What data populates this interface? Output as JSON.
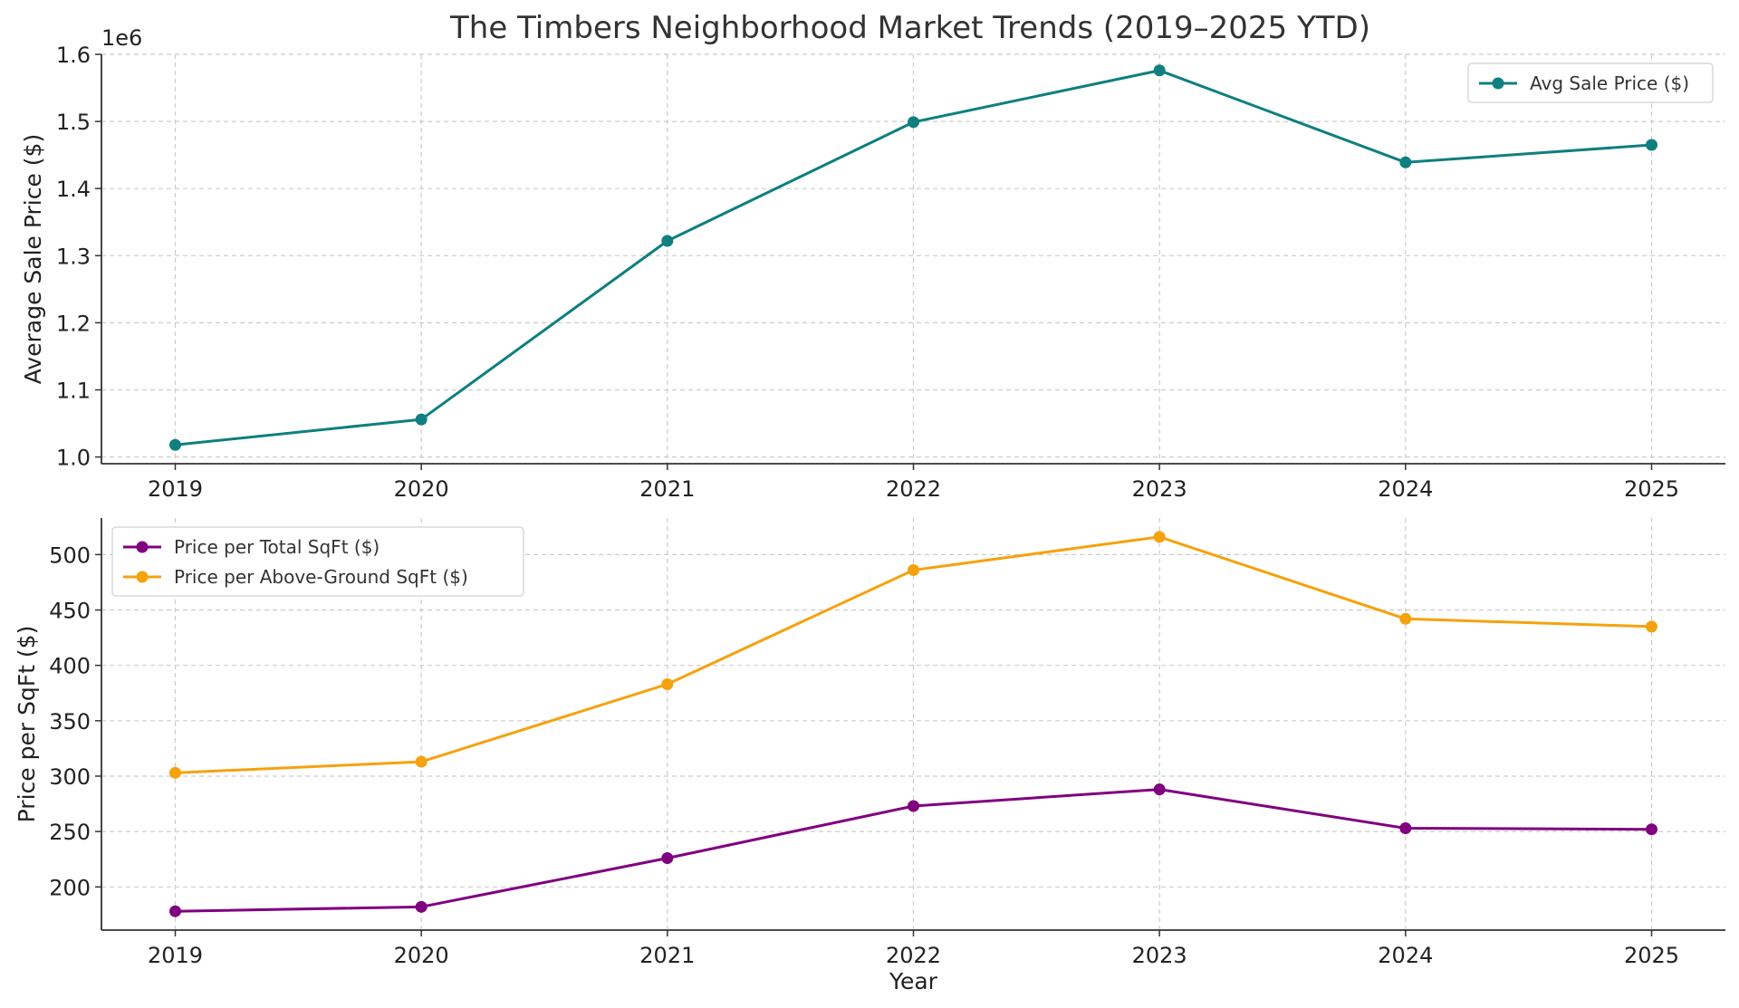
{
  "title": "The Timbers Neighborhood Market Trends (2019–2025 YTD)",
  "chart_data": [
    {
      "type": "line",
      "categories": [
        "2019",
        "2020",
        "2021",
        "2022",
        "2023",
        "2024",
        "2025"
      ],
      "x": [
        2019,
        2020,
        2021,
        2022,
        2023,
        2024,
        2025
      ],
      "ylabel": "Average Sale Price ($)",
      "xlabel": "",
      "offset_text": "1e6",
      "ylim": [
        0.99,
        1.6
      ],
      "yticks": [
        1.0,
        1.1,
        1.2,
        1.3,
        1.4,
        1.5,
        1.6
      ],
      "ytick_labels": [
        "1.0",
        "1.1",
        "1.2",
        "1.3",
        "1.4",
        "1.5",
        "1.6"
      ],
      "grid": true,
      "legend_position": "top-right",
      "series": [
        {
          "name": "Avg Sale Price ($)",
          "color": "#0f7f7f",
          "values": [
            1018000,
            1056000,
            1322000,
            1499000,
            1576000,
            1439000,
            1465000
          ]
        }
      ]
    },
    {
      "type": "line",
      "categories": [
        "2019",
        "2020",
        "2021",
        "2022",
        "2023",
        "2024",
        "2025"
      ],
      "x": [
        2019,
        2020,
        2021,
        2022,
        2023,
        2024,
        2025
      ],
      "ylabel": "Price per SqFt ($)",
      "xlabel": "Year",
      "ylim": [
        161,
        533
      ],
      "yticks": [
        200,
        250,
        300,
        350,
        400,
        450,
        500
      ],
      "ytick_labels": [
        "200",
        "250",
        "300",
        "350",
        "400",
        "450",
        "500"
      ],
      "grid": true,
      "legend_position": "top-left",
      "series": [
        {
          "name": "Price per Total SqFt ($)",
          "color": "#800080",
          "values": [
            178,
            182,
            226,
            273,
            288,
            253,
            252
          ]
        },
        {
          "name": "Price per Above-Ground SqFt ($)",
          "color": "#f5a20f",
          "values": [
            303,
            313,
            383,
            486,
            516,
            442,
            435
          ]
        }
      ]
    }
  ]
}
